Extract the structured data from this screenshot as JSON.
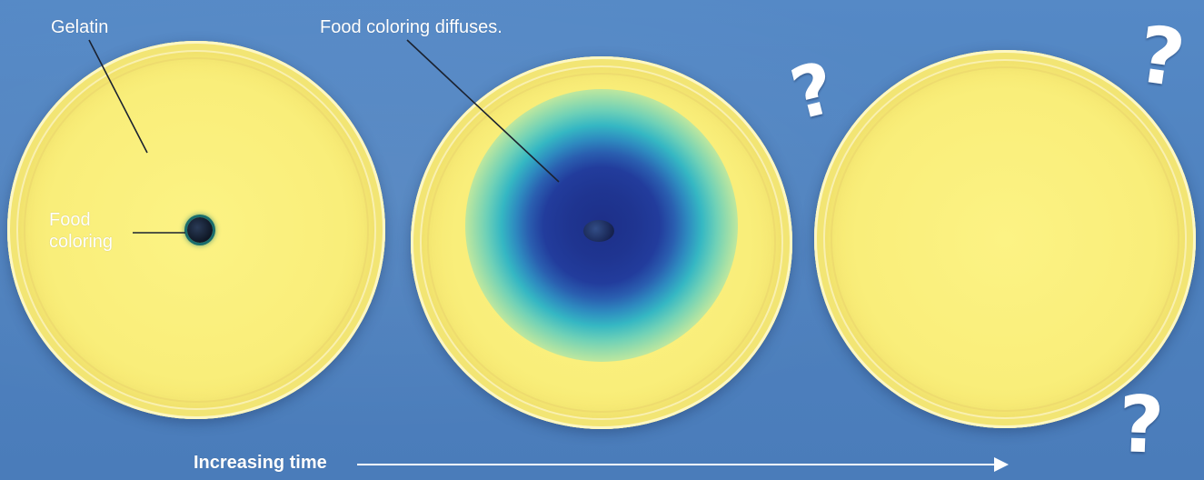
{
  "labels": {
    "gelatin": "Gelatin",
    "food_coloring": "Food coloring",
    "diffuses": "Food coloring diffuses.",
    "time": "Increasing time"
  },
  "question_mark": "?",
  "colors": {
    "background": "#4f83c0",
    "gelatin": "#f9ee7a",
    "dye_center": "#1d2f88",
    "dye_edge": "#35b7c3"
  }
}
